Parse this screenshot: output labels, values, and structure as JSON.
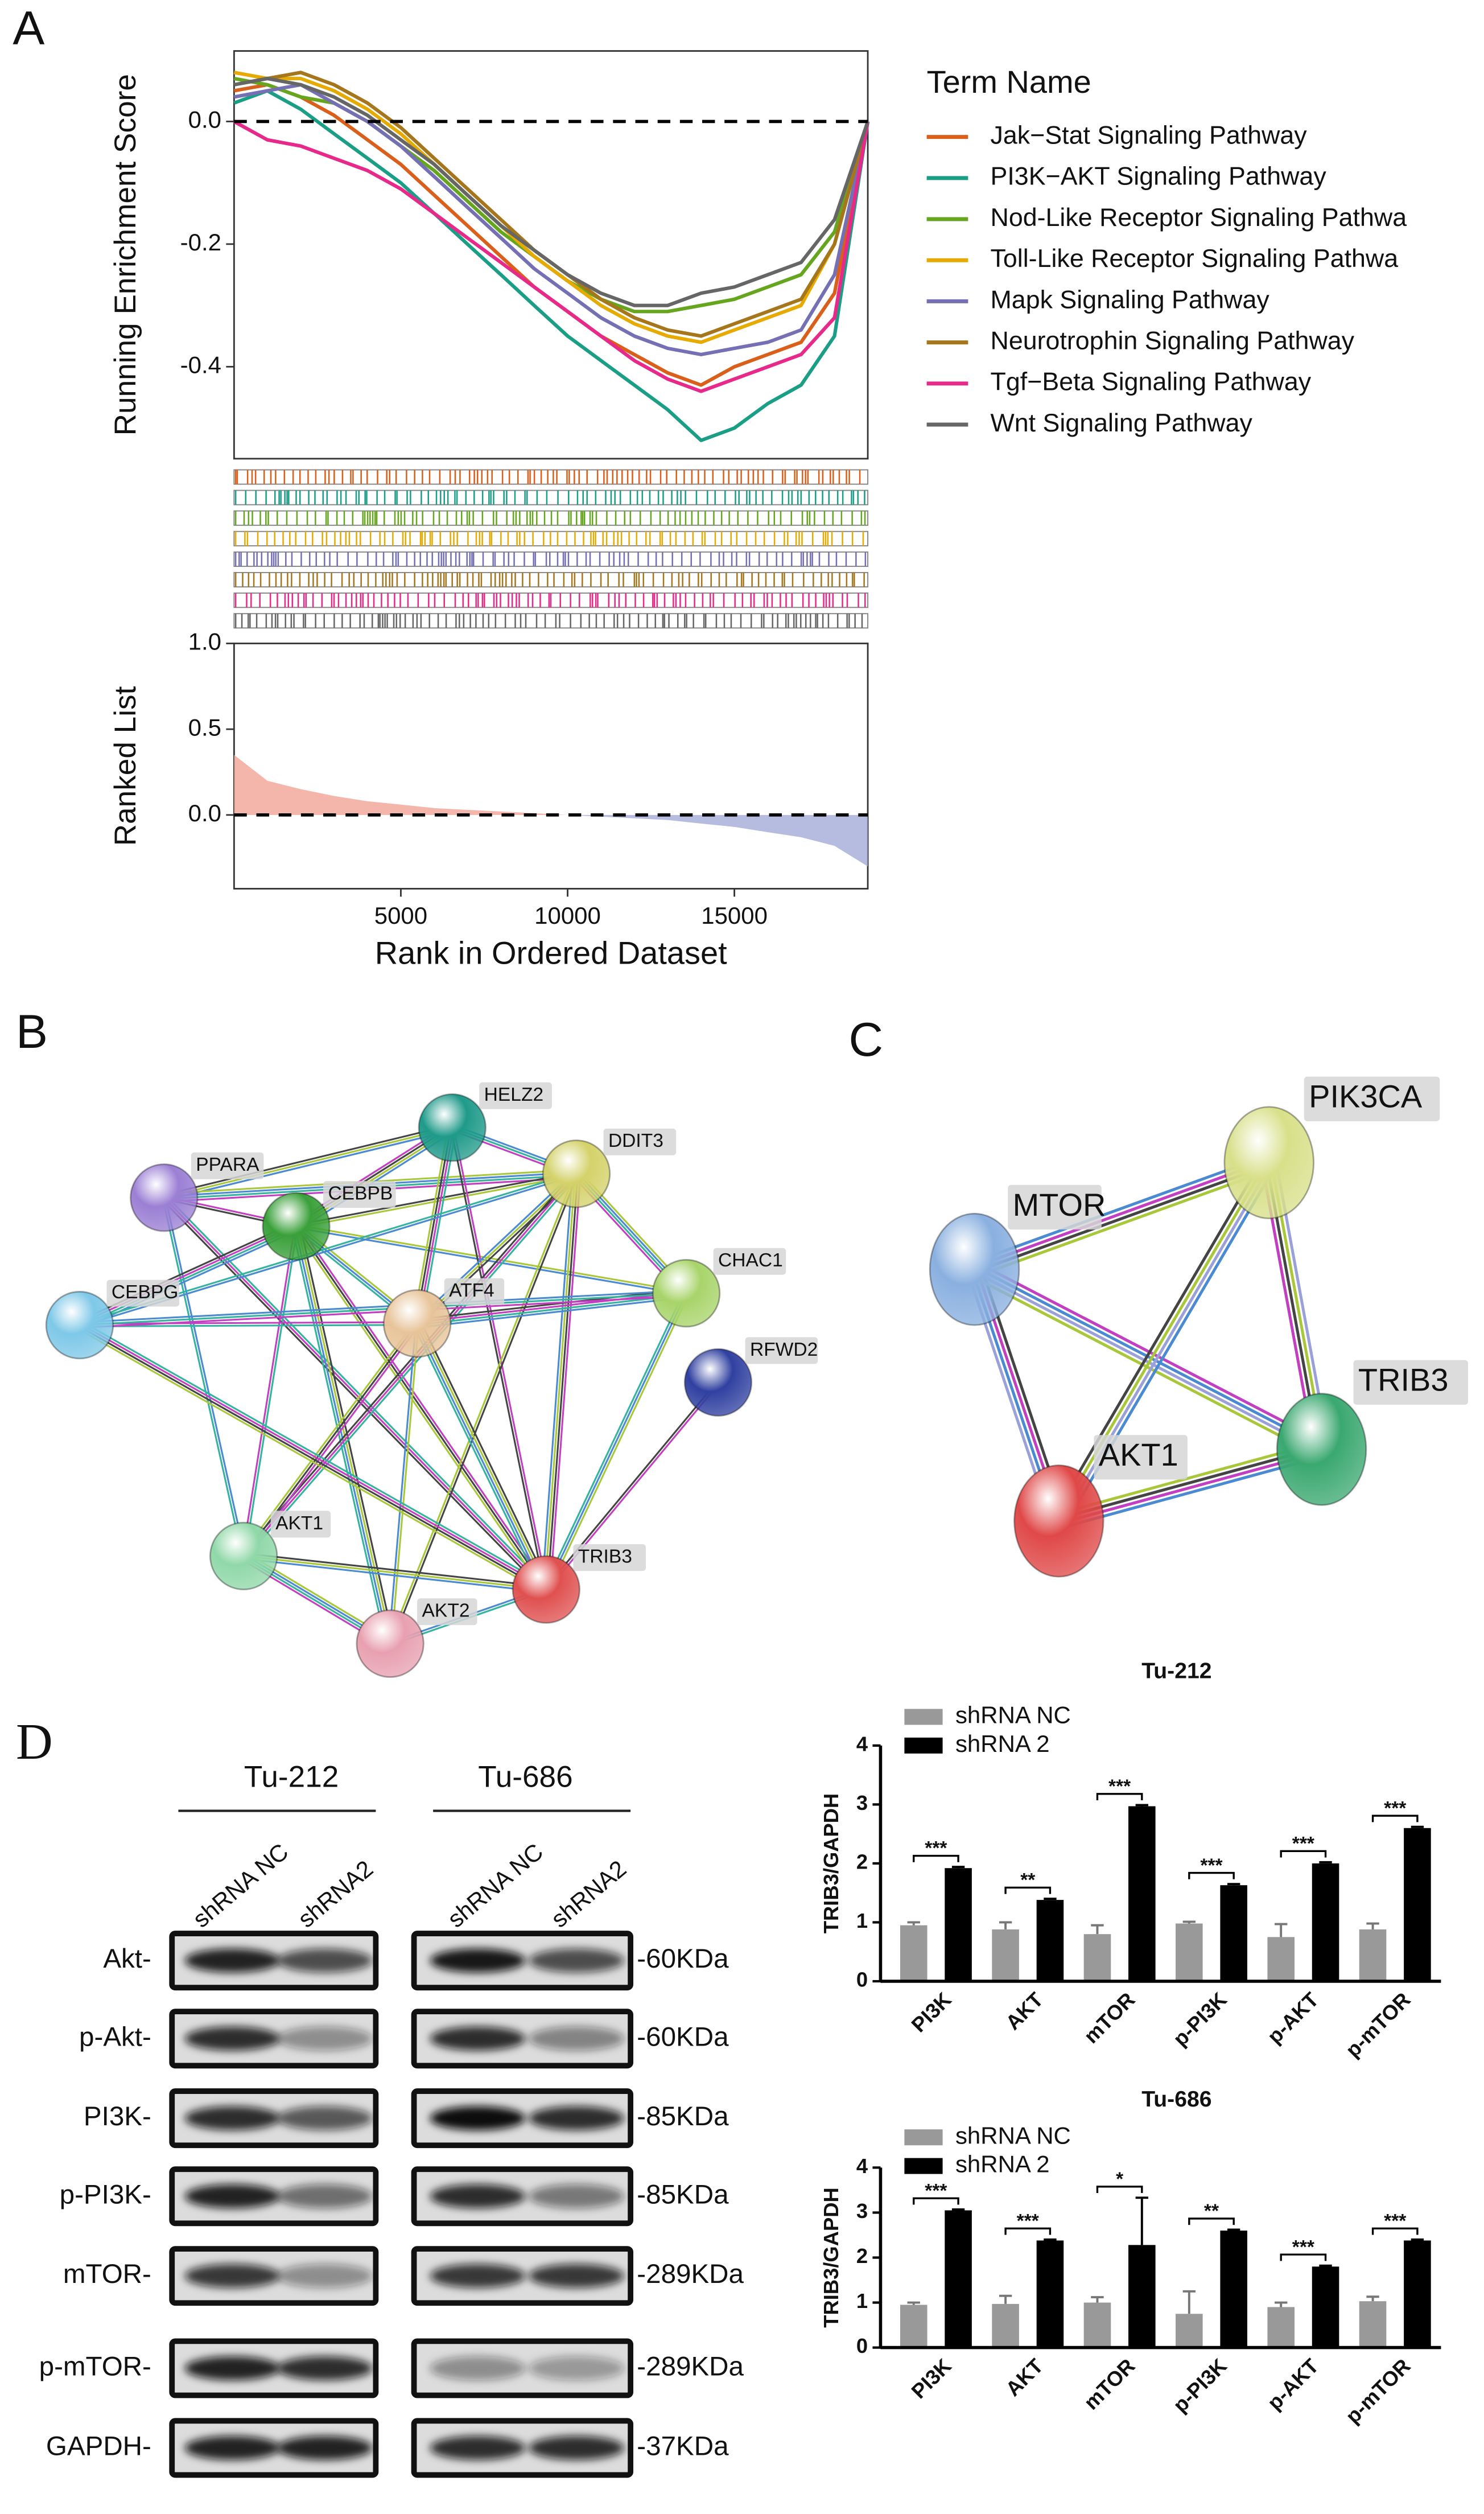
{
  "panel_labels": [
    "A",
    "B",
    "C",
    "D"
  ],
  "chart_data": [
    {
      "type": "line",
      "ylabel": "Running Enrichment Score",
      "legend_title": "Term Name",
      "x": [
        0,
        1000,
        2000,
        3000,
        4000,
        5000,
        6000,
        7000,
        8000,
        9000,
        10000,
        11000,
        12000,
        13000,
        14000,
        15000,
        16000,
        17000,
        18000,
        19000
      ],
      "xlim": [
        0,
        19000
      ],
      "ylim": [
        -0.55,
        0.115
      ],
      "yticks": [
        {
          "value": 0,
          "label": "0.0"
        },
        {
          "value": -0.2,
          "label": "-0.2"
        },
        {
          "value": -0.4,
          "label": "-0.4"
        }
      ],
      "hline": 0,
      "series": [
        {
          "name": "Jak−Stat Signaling Pathway",
          "color": "#d95f1a",
          "values": [
            0.05,
            0.06,
            0.04,
            0.01,
            -0.03,
            -0.07,
            -0.12,
            -0.17,
            -0.22,
            -0.27,
            -0.31,
            -0.35,
            -0.38,
            -0.41,
            -0.43,
            -0.4,
            -0.38,
            -0.36,
            -0.28,
            0
          ]
        },
        {
          "name": "PI3K−AKT Signaling Pathway",
          "color": "#1b9e86",
          "values": [
            0.03,
            0.05,
            0.02,
            -0.02,
            -0.06,
            -0.1,
            -0.15,
            -0.2,
            -0.25,
            -0.3,
            -0.35,
            -0.39,
            -0.43,
            -0.47,
            -0.52,
            -0.5,
            -0.46,
            -0.43,
            -0.35,
            0
          ]
        },
        {
          "name": "Nod-Like Receptor Signaling Pathwa",
          "color": "#66a61e",
          "values": [
            0.07,
            0.06,
            0.04,
            0.03,
            0.0,
            -0.04,
            -0.08,
            -0.13,
            -0.18,
            -0.22,
            -0.26,
            -0.29,
            -0.31,
            -0.31,
            -0.3,
            -0.29,
            -0.27,
            -0.25,
            -0.18,
            0
          ]
        },
        {
          "name": "Toll-Like Receptor Signaling Pathwa",
          "color": "#e6ab02",
          "values": [
            0.08,
            0.07,
            0.07,
            0.05,
            0.02,
            -0.02,
            -0.07,
            -0.12,
            -0.17,
            -0.22,
            -0.26,
            -0.3,
            -0.33,
            -0.35,
            -0.36,
            -0.34,
            -0.32,
            -0.3,
            -0.2,
            0
          ]
        },
        {
          "name": "Mapk Signaling Pathway",
          "color": "#7570b3",
          "values": [
            0.04,
            0.05,
            0.06,
            0.03,
            0.0,
            -0.04,
            -0.09,
            -0.14,
            -0.19,
            -0.24,
            -0.28,
            -0.32,
            -0.35,
            -0.37,
            -0.38,
            -0.37,
            -0.36,
            -0.34,
            -0.25,
            0
          ]
        },
        {
          "name": "Neurotrophin Signaling Pathway",
          "color": "#a6761d",
          "values": [
            0.06,
            0.07,
            0.08,
            0.06,
            0.03,
            -0.01,
            -0.06,
            -0.11,
            -0.16,
            -0.21,
            -0.25,
            -0.29,
            -0.32,
            -0.34,
            -0.35,
            -0.33,
            -0.31,
            -0.29,
            -0.2,
            0
          ]
        },
        {
          "name": "Tgf−Beta Signaling Pathway",
          "color": "#e7298a",
          "values": [
            0.0,
            -0.03,
            -0.04,
            -0.06,
            -0.08,
            -0.11,
            -0.15,
            -0.19,
            -0.23,
            -0.27,
            -0.31,
            -0.35,
            -0.39,
            -0.42,
            -0.44,
            -0.42,
            -0.4,
            -0.38,
            -0.32,
            0
          ]
        },
        {
          "name": "Wnt Signaling Pathway",
          "color": "#666666",
          "values": [
            0.06,
            0.07,
            0.06,
            0.04,
            0.01,
            -0.03,
            -0.07,
            -0.12,
            -0.17,
            -0.21,
            -0.25,
            -0.28,
            -0.3,
            -0.3,
            -0.28,
            -0.27,
            -0.25,
            -0.23,
            -0.16,
            0
          ]
        }
      ]
    },
    {
      "type": "area",
      "ylabel": "Ranked List",
      "xlabel": "Rank in Ordered Dataset",
      "x": [
        0,
        1000,
        2000,
        3000,
        4000,
        5000,
        6000,
        7000,
        8000,
        9000,
        10000,
        11000,
        12000,
        13000,
        14000,
        15000,
        16000,
        17000,
        18000,
        19000
      ],
      "values": [
        0.35,
        0.2,
        0.15,
        0.11,
        0.08,
        0.06,
        0.04,
        0.03,
        0.02,
        0.01,
        0,
        -0.01,
        -0.02,
        -0.03,
        -0.05,
        -0.07,
        -0.1,
        -0.13,
        -0.18,
        -0.3
      ],
      "positive_color": "#f2a89c",
      "negative_color": "#a9b0da",
      "xlim": [
        0,
        19000
      ],
      "xticks": [
        5000,
        10000,
        15000
      ],
      "ylim": [
        -0.43,
        1.0
      ],
      "yticks": [
        {
          "value": 1,
          "label": "1.0"
        },
        {
          "value": 0.5,
          "label": "0.5"
        },
        {
          "value": 0,
          "label": "0.0"
        }
      ],
      "hline": 0
    },
    {
      "type": "bar",
      "title": "Tu-212",
      "ylabel": "TRIB3/GAPDH",
      "categories": [
        "PI3K",
        "AKT",
        "mTOR",
        "p-PI3K",
        "p-AKT",
        "p-mTOR"
      ],
      "series": [
        {
          "name": "shRNA NC",
          "color": "#999999",
          "values": [
            0.95,
            0.88,
            0.8,
            0.98,
            0.75,
            0.88
          ],
          "errors": [
            0.05,
            0.12,
            0.15,
            0.03,
            0.22,
            0.1
          ]
        },
        {
          "name": "shRNA 2",
          "color": "#000000",
          "values": [
            1.92,
            1.38,
            2.97,
            1.63,
            2.0,
            2.6
          ],
          "errors": [
            0.02,
            0.02,
            0.02,
            0.02,
            0.02,
            0.02
          ]
        }
      ],
      "significance": [
        "***",
        "**",
        "***",
        "***",
        "***",
        "***"
      ],
      "ylim": [
        0,
        4
      ],
      "yticks": [
        0,
        1,
        2,
        3,
        4
      ]
    },
    {
      "type": "bar",
      "title": "Tu-686",
      "ylabel": "TRIB3/GAPDH",
      "categories": [
        "PI3K",
        "AKT",
        "mTOR",
        "p-PI3K",
        "p-AKT",
        "p-mTOR"
      ],
      "series": [
        {
          "name": "shRNA NC",
          "color": "#999999",
          "values": [
            0.95,
            0.97,
            1.0,
            0.75,
            0.9,
            1.03
          ],
          "errors": [
            0.05,
            0.18,
            0.12,
            0.5,
            0.1,
            0.1
          ]
        },
        {
          "name": "shRNA 2",
          "color": "#000000",
          "values": [
            3.05,
            2.38,
            2.28,
            2.6,
            1.8,
            2.38
          ],
          "errors": [
            0.02,
            0.02,
            1.05,
            0.02,
            0.02,
            0.02
          ]
        }
      ],
      "significance": [
        "***",
        "***",
        "*",
        "**",
        "***",
        "***"
      ],
      "ylim": [
        0,
        4
      ],
      "yticks": [
        0,
        1,
        2,
        3,
        4
      ]
    }
  ],
  "network_b": {
    "nodes": [
      {
        "label": "PPARA"
      },
      {
        "label": "CEBPB"
      },
      {
        "label": "HELZ2"
      },
      {
        "label": "DDIT3"
      },
      {
        "label": "CHAC1"
      },
      {
        "label": "ATF4"
      },
      {
        "label": "CEBPG"
      },
      {
        "label": "RFWD2"
      },
      {
        "label": "AKT1"
      },
      {
        "label": "TRIB3"
      },
      {
        "label": "AKT2"
      }
    ]
  },
  "network_c": {
    "nodes": [
      {
        "label": "PIK3CA"
      },
      {
        "label": "MTOR"
      },
      {
        "label": "TRIB3"
      },
      {
        "label": "AKT1"
      }
    ]
  },
  "blot": {
    "groups": [
      "Tu-212",
      "Tu-686"
    ],
    "lanes": [
      "shRNA NC",
      "shRNA2"
    ],
    "rows": [
      {
        "protein": "Akt-",
        "size": "-60KDa"
      },
      {
        "protein": "p-Akt-",
        "size": "-60KDa"
      },
      {
        "protein": "PI3K-",
        "size": "-85KDa"
      },
      {
        "protein": "p-PI3K-",
        "size": "-85KDa"
      },
      {
        "protein": "mTOR-",
        "size": "-289KDa"
      },
      {
        "protein": "p-mTOR-",
        "size": "-289KDa"
      },
      {
        "protein": "GAPDH-",
        "size": "-37KDa"
      }
    ]
  }
}
